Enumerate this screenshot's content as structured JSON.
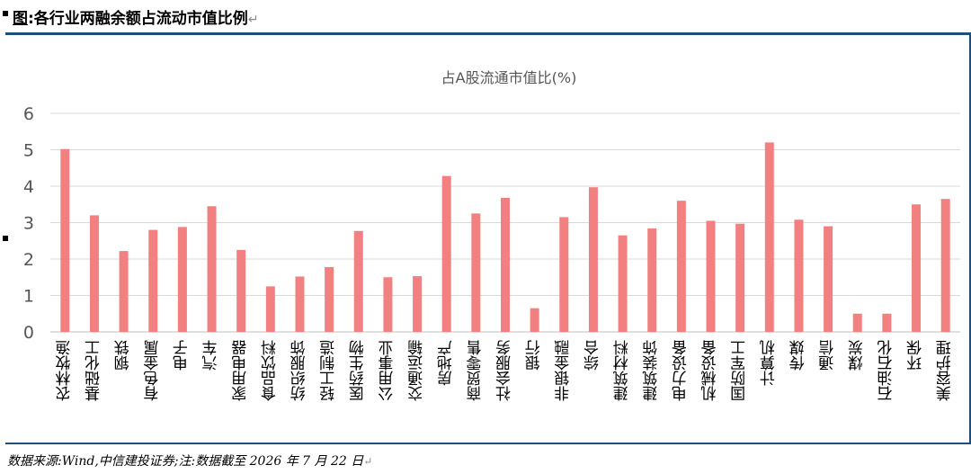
{
  "header": {
    "fig_label": "图",
    "title": ":各行业两融余额占流动市值比例",
    "return_mark": "↵"
  },
  "footer": {
    "text": "数据来源:Wind,中信建投证券;注:数据截至 2026 年 7 月 22 日",
    "return_mark": "↵"
  },
  "colors": {
    "bar": "#f28080",
    "grid": "#d9d9d9",
    "axis": "#bfbfbf",
    "rule": "#1f4e79"
  },
  "chart_data": {
    "type": "bar",
    "title": "占A股流通市值比(%)",
    "xlabel": "",
    "ylabel": "",
    "ylim": [
      0,
      6
    ],
    "yticks": [
      0,
      1,
      2,
      3,
      4,
      5,
      6
    ],
    "grid": true,
    "legend": "none",
    "categories": [
      "农林牧渔",
      "基础化工",
      "钢铁",
      "有色金属",
      "电子",
      "汽车",
      "家用电器",
      "食品饮料",
      "纺织服饰",
      "轻工制造",
      "医药生物",
      "公用事业",
      "交通运输",
      "房地产",
      "商贸零售",
      "社会服务",
      "银行",
      "非银金融",
      "综合",
      "建筑材料",
      "建筑装饰",
      "电力设备",
      "机械设备",
      "国防军工",
      "计算机",
      "传媒",
      "通信",
      "煤炭",
      "石油石化",
      "环保",
      "美容护理"
    ],
    "values": [
      5.02,
      3.2,
      2.22,
      2.8,
      2.88,
      3.45,
      2.25,
      1.25,
      1.52,
      1.78,
      2.77,
      1.5,
      1.53,
      4.28,
      3.25,
      3.68,
      0.65,
      3.15,
      3.97,
      2.65,
      2.84,
      3.6,
      3.05,
      2.97,
      5.2,
      3.08,
      2.9,
      0.5,
      0.5,
      3.5,
      3.65
    ]
  }
}
